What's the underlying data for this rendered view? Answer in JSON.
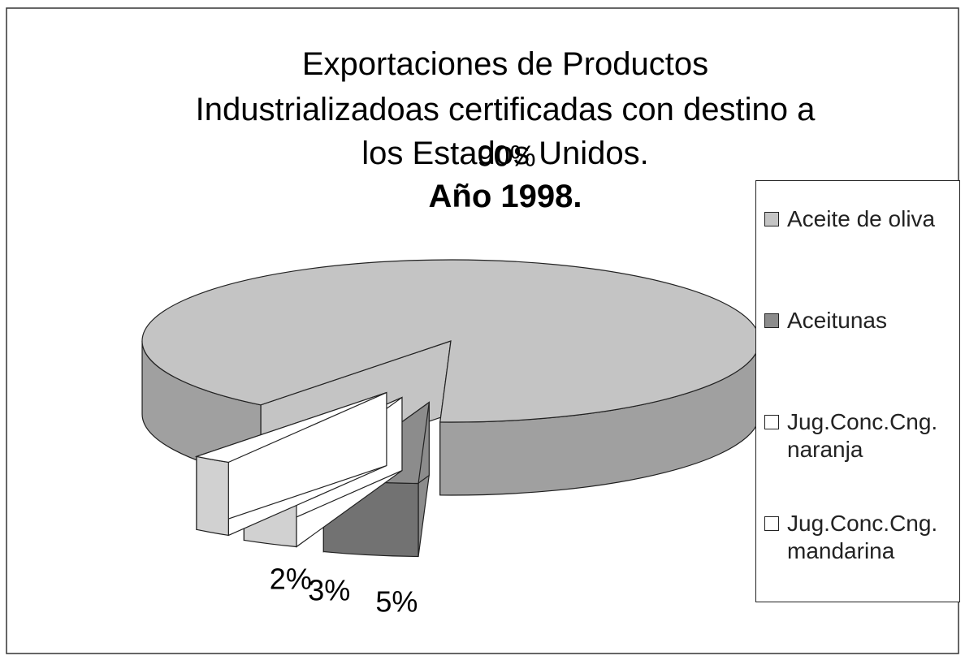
{
  "chart_data": {
    "type": "pie",
    "title": [
      "Exportaciones de Productos",
      "Industrializadoas certificadas con destino a",
      "los Estados Unidos.",
      "Año 1998."
    ],
    "categories": [
      "Aceite de oliva",
      "Aceitunas",
      "Jug.Conc.Cng. naranja",
      "Jug.Conc.Cng. mandarina"
    ],
    "values": [
      90,
      5,
      3,
      2
    ],
    "value_labels": [
      "90%",
      "5%",
      "3%",
      "2%"
    ],
    "colors": [
      "#c4c4c4",
      "#8c8c8c",
      "#ffffff",
      "#ffffff"
    ],
    "legend": "right"
  }
}
